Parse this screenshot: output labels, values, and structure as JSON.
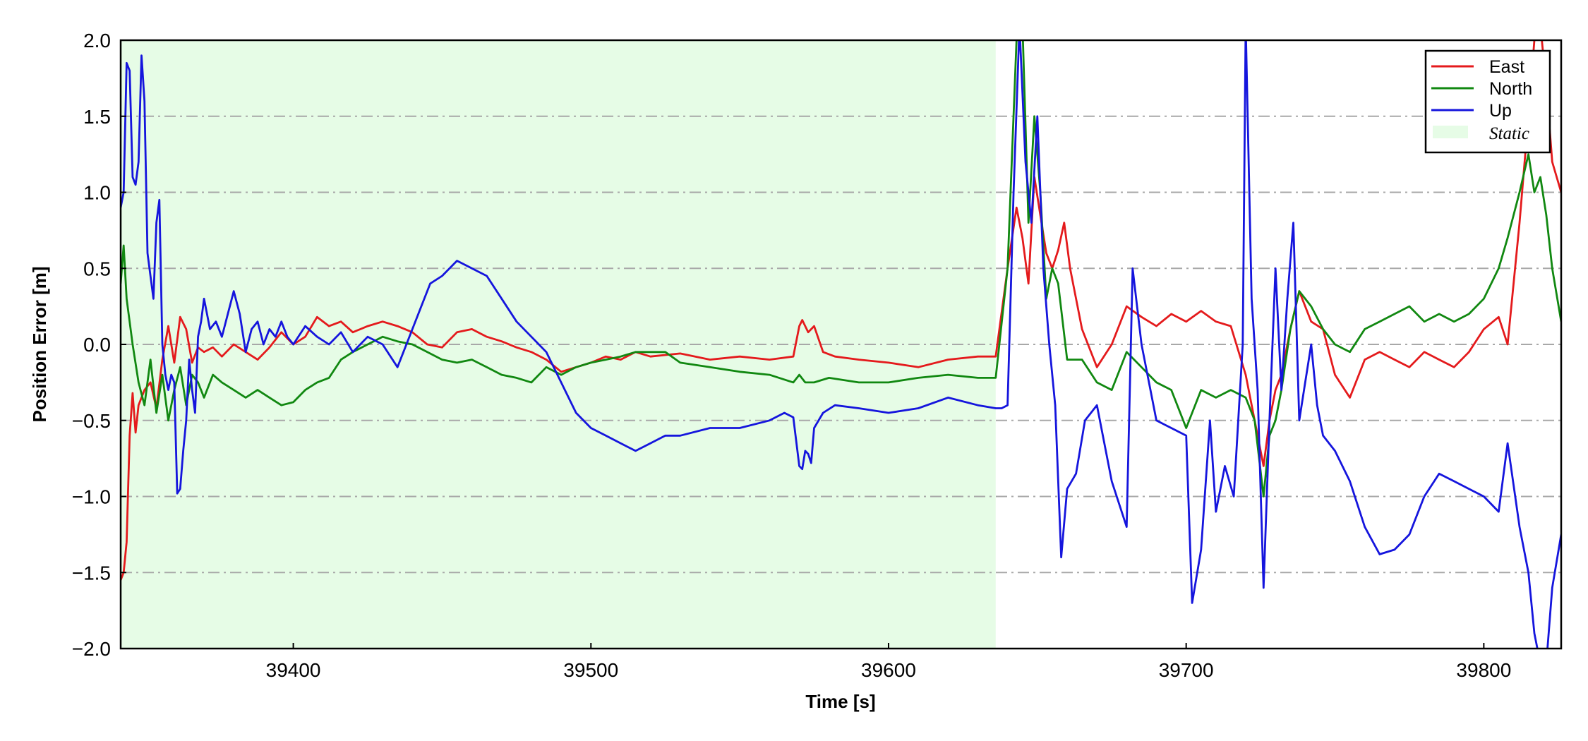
{
  "chart_data": {
    "type": "line",
    "xlabel": "Time [s]",
    "ylabel": "Position Error [m]",
    "xlim": [
      39342,
      39826
    ],
    "ylim": [
      -2.0,
      2.0
    ],
    "xticks": [
      39400,
      39500,
      39600,
      39700,
      39800
    ],
    "xtick_labels": [
      "39400",
      "39500",
      "39600",
      "39700",
      "39800"
    ],
    "yticks": [
      -2.0,
      -1.5,
      -1.0,
      -0.5,
      0.0,
      0.5,
      1.0,
      1.5,
      2.0
    ],
    "ytick_labels": [
      "−2.0",
      "−1.5",
      "−1.0",
      "−0.5",
      "0.0",
      "0.5",
      "1.0",
      "1.5",
      "2.0"
    ],
    "grid": "horizontal dash-dot",
    "legend_position": "top-right",
    "static_region": {
      "name": "Static",
      "x_start": 39342,
      "x_end": 39636,
      "color": "#e6fce6"
    },
    "series": [
      {
        "name": "East",
        "color": "#e41a1c",
        "x": [
          39342,
          39343,
          39344,
          39345,
          39346,
          39347,
          39348,
          39350,
          39352,
          39354,
          39356,
          39358,
          39360,
          39362,
          39364,
          39366,
          39368,
          39370,
          39373,
          39376,
          39380,
          39384,
          39388,
          39392,
          39396,
          39400,
          39404,
          39408,
          39412,
          39416,
          39420,
          39425,
          39430,
          39435,
          39440,
          39445,
          39450,
          39455,
          39460,
          39465,
          39470,
          39475,
          39480,
          39485,
          39490,
          39495,
          39500,
          39505,
          39510,
          39515,
          39520,
          39530,
          39540,
          39550,
          39560,
          39568,
          39570,
          39571,
          39573,
          39575,
          39578,
          39582,
          39590,
          39600,
          39610,
          39620,
          39630,
          39636,
          39640,
          39643,
          39645,
          39647,
          39649,
          39651,
          39653,
          39655,
          39657,
          39659,
          39661,
          39665,
          39670,
          39675,
          39680,
          39685,
          39690,
          39695,
          39700,
          39705,
          39710,
          39715,
          39720,
          39723,
          39726,
          39728,
          39730,
          39732,
          39735,
          39738,
          39742,
          39746,
          39750,
          39755,
          39760,
          39765,
          39770,
          39775,
          39780,
          39785,
          39790,
          39795,
          39800,
          39805,
          39808,
          39812,
          39815,
          39817,
          39819,
          39821,
          39823,
          39826
        ],
        "y": [
          -1.55,
          -1.5,
          -1.3,
          -0.6,
          -0.32,
          -0.58,
          -0.4,
          -0.3,
          -0.25,
          -0.42,
          -0.1,
          0.12,
          -0.12,
          0.18,
          0.1,
          -0.12,
          -0.02,
          -0.05,
          -0.02,
          -0.08,
          0.0,
          -0.05,
          -0.1,
          -0.02,
          0.08,
          0.0,
          0.05,
          0.18,
          0.12,
          0.15,
          0.08,
          0.12,
          0.15,
          0.12,
          0.08,
          0.0,
          -0.02,
          0.08,
          0.1,
          0.05,
          0.02,
          -0.02,
          -0.05,
          -0.1,
          -0.18,
          -0.15,
          -0.12,
          -0.08,
          -0.1,
          -0.05,
          -0.08,
          -0.06,
          -0.1,
          -0.08,
          -0.1,
          -0.08,
          0.12,
          0.16,
          0.08,
          0.12,
          -0.05,
          -0.08,
          -0.1,
          -0.12,
          -0.15,
          -0.1,
          -0.08,
          -0.08,
          0.5,
          0.9,
          0.7,
          0.4,
          1.1,
          0.85,
          0.6,
          0.5,
          0.62,
          0.8,
          0.5,
          0.1,
          -0.15,
          0.0,
          0.25,
          0.18,
          0.12,
          0.2,
          0.15,
          0.22,
          0.15,
          0.12,
          -0.2,
          -0.5,
          -0.8,
          -0.5,
          -0.3,
          -0.2,
          0.1,
          0.35,
          0.15,
          0.1,
          -0.2,
          -0.35,
          -0.1,
          -0.05,
          -0.1,
          -0.15,
          -0.05,
          -0.1,
          -0.15,
          -0.05,
          0.1,
          0.18,
          0.0,
          0.8,
          1.5,
          2.0,
          2.1,
          1.7,
          1.2,
          1.0
        ]
      },
      {
        "name": "North",
        "color": "#118811",
        "x": [
          39342,
          39343,
          39344,
          39346,
          39348,
          39350,
          39352,
          39354,
          39356,
          39358,
          39360,
          39362,
          39364,
          39366,
          39368,
          39370,
          39373,
          39376,
          39380,
          39384,
          39388,
          39392,
          39396,
          39400,
          39404,
          39408,
          39412,
          39416,
          39420,
          39425,
          39430,
          39435,
          39440,
          39445,
          39450,
          39455,
          39460,
          39465,
          39470,
          39475,
          39480,
          39485,
          39490,
          39495,
          39500,
          39505,
          39510,
          39515,
          39520,
          39525,
          39530,
          39540,
          39550,
          39560,
          39568,
          39570,
          39572,
          39575,
          39580,
          39590,
          39600,
          39610,
          39620,
          39630,
          39636,
          39640,
          39643,
          39645,
          39647,
          39649,
          39651,
          39653,
          39655,
          39657,
          39660,
          39665,
          39670,
          39675,
          39680,
          39685,
          39690,
          39695,
          39700,
          39705,
          39710,
          39715,
          39720,
          39723,
          39726,
          39728,
          39730,
          39732,
          39735,
          39738,
          39742,
          39746,
          39750,
          39755,
          39760,
          39765,
          39770,
          39775,
          39780,
          39785,
          39790,
          39795,
          39800,
          39805,
          39808,
          39812,
          39815,
          39817,
          39819,
          39821,
          39823,
          39826
        ],
        "y": [
          0.4,
          0.65,
          0.3,
          0.0,
          -0.25,
          -0.4,
          -0.1,
          -0.45,
          -0.2,
          -0.5,
          -0.3,
          -0.15,
          -0.4,
          -0.2,
          -0.25,
          -0.35,
          -0.2,
          -0.25,
          -0.3,
          -0.35,
          -0.3,
          -0.35,
          -0.4,
          -0.38,
          -0.3,
          -0.25,
          -0.22,
          -0.1,
          -0.05,
          0.0,
          0.05,
          0.02,
          0.0,
          -0.05,
          -0.1,
          -0.12,
          -0.1,
          -0.15,
          -0.2,
          -0.22,
          -0.25,
          -0.15,
          -0.2,
          -0.15,
          -0.12,
          -0.1,
          -0.08,
          -0.05,
          -0.05,
          -0.05,
          -0.12,
          -0.15,
          -0.18,
          -0.2,
          -0.25,
          -0.2,
          -0.25,
          -0.25,
          -0.22,
          -0.25,
          -0.25,
          -0.22,
          -0.2,
          -0.22,
          -0.22,
          0.5,
          2.0,
          2.1,
          0.8,
          1.5,
          1.0,
          0.3,
          0.5,
          0.4,
          -0.1,
          -0.1,
          -0.25,
          -0.3,
          -0.05,
          -0.15,
          -0.25,
          -0.3,
          -0.55,
          -0.3,
          -0.35,
          -0.3,
          -0.35,
          -0.5,
          -1.0,
          -0.6,
          -0.5,
          -0.3,
          0.1,
          0.35,
          0.25,
          0.1,
          0.0,
          -0.05,
          0.1,
          0.15,
          0.2,
          0.25,
          0.15,
          0.2,
          0.15,
          0.2,
          0.3,
          0.5,
          0.7,
          1.0,
          1.25,
          1.0,
          1.1,
          0.85,
          0.5,
          0.15
        ]
      },
      {
        "name": "Up",
        "color": "#1515dd",
        "x": [
          39342,
          39343,
          39344,
          39345,
          39346,
          39347,
          39348,
          39349,
          39350,
          39351,
          39352,
          39353,
          39354,
          39355,
          39356,
          39357,
          39358,
          39359,
          39360,
          39361,
          39362,
          39363,
          39364,
          39365,
          39366,
          39367,
          39368,
          39369,
          39370,
          39372,
          39374,
          39376,
          39378,
          39380,
          39382,
          39384,
          39386,
          39388,
          39390,
          39392,
          39394,
          39396,
          39398,
          39400,
          39404,
          39408,
          39412,
          39416,
          39420,
          39425,
          39430,
          39435,
          39440,
          39443,
          39446,
          39450,
          39455,
          39460,
          39465,
          39470,
          39475,
          39480,
          39485,
          39490,
          39495,
          39500,
          39505,
          39510,
          39515,
          39520,
          39525,
          39530,
          39540,
          39550,
          39560,
          39565,
          39568,
          39570,
          39571,
          39572,
          39573,
          39574,
          39575,
          39578,
          39582,
          39590,
          39600,
          39610,
          39620,
          39630,
          39636,
          39638,
          39640,
          39642,
          39644,
          39646,
          39648,
          39650,
          39652,
          39654,
          39656,
          39658,
          39660,
          39663,
          39666,
          39670,
          39675,
          39680,
          39682,
          39685,
          39690,
          39695,
          39700,
          39702,
          39705,
          39708,
          39710,
          39713,
          39716,
          39719,
          39720,
          39722,
          39724,
          39726,
          39728,
          39730,
          39732,
          39734,
          39736,
          39738,
          39740,
          39742,
          39744,
          39746,
          39750,
          39755,
          39760,
          39765,
          39770,
          39775,
          39780,
          39785,
          39790,
          39795,
          39800,
          39805,
          39808,
          39812,
          39815,
          39817,
          39819,
          39821,
          39823,
          39826
        ],
        "y": [
          0.9,
          1.0,
          1.85,
          1.8,
          1.1,
          1.05,
          1.2,
          1.9,
          1.6,
          0.6,
          0.45,
          0.3,
          0.8,
          0.95,
          0.0,
          -0.2,
          -0.3,
          -0.2,
          -0.25,
          -0.98,
          -0.95,
          -0.7,
          -0.5,
          -0.1,
          -0.3,
          -0.45,
          0.05,
          0.15,
          0.3,
          0.1,
          0.15,
          0.05,
          0.2,
          0.35,
          0.2,
          -0.05,
          0.1,
          0.15,
          0.0,
          0.1,
          0.05,
          0.15,
          0.05,
          0.0,
          0.12,
          0.05,
          0.0,
          0.08,
          -0.05,
          0.05,
          0.0,
          -0.15,
          0.1,
          0.25,
          0.4,
          0.45,
          0.55,
          0.5,
          0.45,
          0.3,
          0.15,
          0.05,
          -0.05,
          -0.25,
          -0.45,
          -0.55,
          -0.6,
          -0.65,
          -0.7,
          -0.65,
          -0.6,
          -0.6,
          -0.55,
          -0.55,
          -0.5,
          -0.45,
          -0.48,
          -0.8,
          -0.82,
          -0.7,
          -0.72,
          -0.78,
          -0.55,
          -0.45,
          -0.4,
          -0.42,
          -0.45,
          -0.42,
          -0.35,
          -0.4,
          -0.42,
          -0.42,
          -0.4,
          1.0,
          2.1,
          1.2,
          0.8,
          1.5,
          0.5,
          0.0,
          -0.4,
          -1.4,
          -0.95,
          -0.85,
          -0.5,
          -0.4,
          -0.9,
          -1.2,
          0.5,
          0.0,
          -0.5,
          -0.55,
          -0.6,
          -1.7,
          -1.35,
          -0.5,
          -1.1,
          -0.8,
          -1.0,
          0.0,
          2.1,
          0.3,
          -0.3,
          -1.6,
          -0.5,
          0.5,
          -0.3,
          0.3,
          0.8,
          -0.5,
          -0.25,
          0.0,
          -0.4,
          -0.6,
          -0.7,
          -0.9,
          -1.2,
          -1.38,
          -1.35,
          -1.25,
          -1.0,
          -0.85,
          -0.9,
          -0.95,
          -1.0,
          -1.1,
          -0.65,
          -1.2,
          -1.5,
          -1.9,
          -2.1,
          -2.1,
          -1.6,
          -1.25
        ]
      }
    ]
  }
}
